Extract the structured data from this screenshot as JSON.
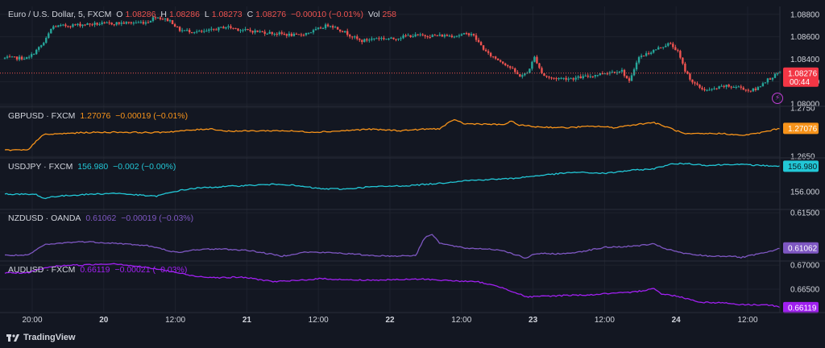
{
  "brand": {
    "name": "TradingView"
  },
  "panes": {
    "main": {
      "symbol": "Euro / U.S. Dollar, 5, FXCM",
      "ohlc": {
        "o_label": "O",
        "o": "1.08286",
        "h_label": "H",
        "h": "1.08286",
        "l_label": "L",
        "l": "1.08273",
        "c_label": "C",
        "c": "1.08276",
        "change": "−0.00010 (−0.01%)",
        "vol_label": "Vol",
        "vol": "258"
      },
      "last_price": "1.08276",
      "countdown": "00:44"
    },
    "gbpusd": {
      "symbol": "GBPUSD · FXCM",
      "value": "1.27076",
      "change": "−0.00019 (−0.01%)",
      "last_price": "1.27076"
    },
    "usdjpy": {
      "symbol": "USDJPY · FXCM",
      "value": "156.980",
      "change": "−0.002 (−0.00%)",
      "last_price": "156.980"
    },
    "nzdusd": {
      "symbol": "NZDUSD · OANDA",
      "value": "0.61062",
      "change": "−0.00019 (−0.03%)",
      "last_price": "0.61062"
    },
    "audusd": {
      "symbol": "AUDUSD · FXCM",
      "value": "0.66119",
      "change": "−0.00021 (−0.03%)",
      "last_price": "0.66119"
    }
  },
  "colors": {
    "background": "#131722",
    "up": "#26a69a",
    "down": "#ef5350",
    "gbpusd": "#f7931a",
    "usdjpy": "#22c7d6",
    "nzdusd": "#7e57c2",
    "audusd": "#a020f0",
    "price_line": "#ef5350",
    "alert": "#c13ed5"
  },
  "chart_data": [
    {
      "type": "candlestick",
      "title": "Euro / U.S. Dollar, 5, FXCM",
      "x": [
        "20:00",
        "20",
        "12:00",
        "21",
        "12:00",
        "22",
        "12:00",
        "23",
        "12:00",
        "24",
        "12:00"
      ],
      "x_bold": [
        "20",
        "21",
        "22",
        "23",
        "24"
      ],
      "path": [
        [
          0,
          1.0841
        ],
        [
          3,
          1.0841
        ],
        [
          5,
          1.0855
        ],
        [
          6,
          1.0869
        ],
        [
          10,
          1.0871
        ],
        [
          18,
          1.0873
        ],
        [
          19,
          1.0878
        ],
        [
          21,
          1.0874
        ],
        [
          22,
          1.0866
        ],
        [
          25,
          1.0864
        ],
        [
          28,
          1.0869
        ],
        [
          30,
          1.0866
        ],
        [
          37,
          1.0861
        ],
        [
          39,
          1.0865
        ],
        [
          41,
          1.0871
        ],
        [
          43,
          1.0864
        ],
        [
          45,
          1.0856
        ],
        [
          47,
          1.0859
        ],
        [
          49,
          1.0858
        ],
        [
          51,
          1.0861
        ],
        [
          54,
          1.0861
        ],
        [
          57,
          1.0861
        ],
        [
          59,
          1.0863
        ],
        [
          60,
          1.0854
        ],
        [
          61,
          1.0845
        ],
        [
          63,
          1.0837
        ],
        [
          64,
          1.0832
        ],
        [
          65,
          1.0825
        ],
        [
          66,
          1.0827
        ],
        [
          67,
          1.0842
        ],
        [
          68,
          1.0826
        ],
        [
          69,
          1.0823
        ],
        [
          72,
          1.0823
        ],
        [
          74,
          1.0825
        ],
        [
          76,
          1.0828
        ],
        [
          78,
          1.083
        ],
        [
          79,
          1.0819
        ],
        [
          80,
          1.0841
        ],
        [
          83,
          1.0851
        ],
        [
          84,
          1.0854
        ],
        [
          85,
          1.0848
        ],
        [
          86,
          1.083
        ],
        [
          87,
          1.0819
        ],
        [
          88,
          1.0814
        ],
        [
          89,
          1.0812
        ],
        [
          91,
          1.0816
        ],
        [
          93,
          1.0815
        ],
        [
          94,
          1.0812
        ],
        [
          95,
          1.0813
        ],
        [
          96,
          1.082
        ],
        [
          97,
          1.0824
        ],
        [
          98,
          1.0828
        ]
      ],
      "y_ticks": [
        1.088,
        1.086,
        1.084,
        1.082,
        1.08
      ],
      "ylim": [
        1.0798,
        1.0887
      ],
      "last_price": 1.08276
    },
    {
      "type": "line",
      "series": [
        {
          "name": "GBPUSD",
          "color": "#f7931a"
        }
      ],
      "path": [
        [
          0,
          1.2663
        ],
        [
          3,
          1.2663
        ],
        [
          4,
          1.2683
        ],
        [
          5,
          1.2695
        ],
        [
          10,
          1.2699
        ],
        [
          14,
          1.27
        ],
        [
          19,
          1.2699
        ],
        [
          22,
          1.2702
        ],
        [
          26,
          1.2707
        ],
        [
          28,
          1.2702
        ],
        [
          35,
          1.2703
        ],
        [
          39,
          1.27
        ],
        [
          42,
          1.2702
        ],
        [
          44,
          1.2704
        ],
        [
          46,
          1.2706
        ],
        [
          50,
          1.2703
        ],
        [
          53,
          1.2706
        ],
        [
          55,
          1.2707
        ],
        [
          56,
          1.2718
        ],
        [
          57,
          1.2726
        ],
        [
          58,
          1.2717
        ],
        [
          60,
          1.2717
        ],
        [
          63,
          1.2715
        ],
        [
          64,
          1.2722
        ],
        [
          65,
          1.2715
        ],
        [
          67,
          1.2711
        ],
        [
          71,
          1.2709
        ],
        [
          73,
          1.2711
        ],
        [
          75,
          1.2712
        ],
        [
          77,
          1.2709
        ],
        [
          79,
          1.2714
        ],
        [
          82,
          1.272
        ],
        [
          83,
          1.2714
        ],
        [
          84,
          1.2709
        ],
        [
          86,
          1.2696
        ],
        [
          89,
          1.2697
        ],
        [
          91,
          1.2697
        ],
        [
          93,
          1.2693
        ],
        [
          95,
          1.2697
        ],
        [
          97,
          1.2704
        ],
        [
          98,
          1.2708
        ]
      ],
      "y_ticks": [
        1.275,
        1.265
      ],
      "ylim": [
        1.2647,
        1.2753
      ],
      "last_price": 1.27076
    },
    {
      "type": "line",
      "series": [
        {
          "name": "USDJPY",
          "color": "#22c7d6"
        }
      ],
      "path": [
        [
          0,
          155.92
        ],
        [
          4,
          155.9
        ],
        [
          5,
          155.74
        ],
        [
          6,
          155.82
        ],
        [
          10,
          155.9
        ],
        [
          14,
          155.95
        ],
        [
          19,
          155.83
        ],
        [
          22,
          156.05
        ],
        [
          24,
          156.14
        ],
        [
          30,
          156.24
        ],
        [
          35,
          156.3
        ],
        [
          40,
          156.12
        ],
        [
          43,
          156.11
        ],
        [
          46,
          156.19
        ],
        [
          51,
          156.24
        ],
        [
          55,
          156.33
        ],
        [
          58,
          156.43
        ],
        [
          61,
          156.47
        ],
        [
          64,
          156.51
        ],
        [
          68,
          156.64
        ],
        [
          72,
          156.75
        ],
        [
          76,
          156.71
        ],
        [
          79,
          156.82
        ],
        [
          82,
          156.88
        ],
        [
          84,
          157.05
        ],
        [
          86,
          157.09
        ],
        [
          89,
          157.01
        ],
        [
          92,
          157.06
        ],
        [
          95,
          157.02
        ],
        [
          98,
          156.98
        ]
      ],
      "y_ticks": [
        156.0
      ],
      "ylim": [
        155.33,
        157.3
      ],
      "last_price": 156.98
    },
    {
      "type": "line",
      "series": [
        {
          "name": "NZDUSD",
          "color": "#7e57c2"
        }
      ],
      "path": [
        [
          0,
          0.6097
        ],
        [
          3,
          0.6097
        ],
        [
          4,
          0.6104
        ],
        [
          5,
          0.611
        ],
        [
          8,
          0.6113
        ],
        [
          10,
          0.6114
        ],
        [
          14,
          0.6112
        ],
        [
          18,
          0.6109
        ],
        [
          22,
          0.61
        ],
        [
          24,
          0.6104
        ],
        [
          27,
          0.6105
        ],
        [
          31,
          0.6103
        ],
        [
          35,
          0.6096
        ],
        [
          38,
          0.6101
        ],
        [
          42,
          0.61
        ],
        [
          46,
          0.6097
        ],
        [
          49,
          0.6096
        ],
        [
          52,
          0.6097
        ],
        [
          53,
          0.6118
        ],
        [
          54,
          0.6124
        ],
        [
          55,
          0.6112
        ],
        [
          58,
          0.6106
        ],
        [
          61,
          0.6105
        ],
        [
          63,
          0.6103
        ],
        [
          66,
          0.6093
        ],
        [
          67,
          0.6099
        ],
        [
          71,
          0.6099
        ],
        [
          73,
          0.6102
        ],
        [
          76,
          0.6107
        ],
        [
          79,
          0.6108
        ],
        [
          82,
          0.6111
        ],
        [
          83,
          0.6107
        ],
        [
          84,
          0.6104
        ],
        [
          86,
          0.6099
        ],
        [
          89,
          0.6096
        ],
        [
          92,
          0.6096
        ],
        [
          93,
          0.6094
        ],
        [
          95,
          0.6098
        ],
        [
          97,
          0.6102
        ],
        [
          98,
          0.6106
        ]
      ],
      "y_ticks": [
        0.615
      ],
      "ylim": [
        0.60899,
        0.61541
      ],
      "last_price": 0.61062
    },
    {
      "type": "line",
      "series": [
        {
          "name": "AUDUSD",
          "color": "#a020f0"
        }
      ],
      "path": [
        [
          0,
          0.6684
        ],
        [
          3,
          0.6684
        ],
        [
          4,
          0.669
        ],
        [
          6,
          0.6697
        ],
        [
          8,
          0.67
        ],
        [
          10,
          0.67
        ],
        [
          12,
          0.6702
        ],
        [
          14,
          0.6703
        ],
        [
          17,
          0.6697
        ],
        [
          20,
          0.669
        ],
        [
          24,
          0.6677
        ],
        [
          27,
          0.6674
        ],
        [
          30,
          0.6675
        ],
        [
          34,
          0.6666
        ],
        [
          36,
          0.6667
        ],
        [
          40,
          0.6672
        ],
        [
          44,
          0.6669
        ],
        [
          47,
          0.6669
        ],
        [
          50,
          0.667
        ],
        [
          53,
          0.6671
        ],
        [
          56,
          0.6668
        ],
        [
          60,
          0.6665
        ],
        [
          63,
          0.6653
        ],
        [
          66,
          0.6634
        ],
        [
          69,
          0.6636
        ],
        [
          72,
          0.6638
        ],
        [
          74,
          0.6638
        ],
        [
          76,
          0.6641
        ],
        [
          79,
          0.6643
        ],
        [
          81,
          0.6648
        ],
        [
          82,
          0.6653
        ],
        [
          83,
          0.664
        ],
        [
          85,
          0.6636
        ],
        [
          88,
          0.6623
        ],
        [
          91,
          0.6622
        ],
        [
          93,
          0.6618
        ],
        [
          95,
          0.6618
        ],
        [
          97,
          0.6617
        ],
        [
          98,
          0.6612
        ]
      ],
      "y_ticks": [
        0.67,
        0.665
      ],
      "ylim": [
        0.66017,
        0.67085
      ],
      "last_price": 0.66119
    }
  ]
}
